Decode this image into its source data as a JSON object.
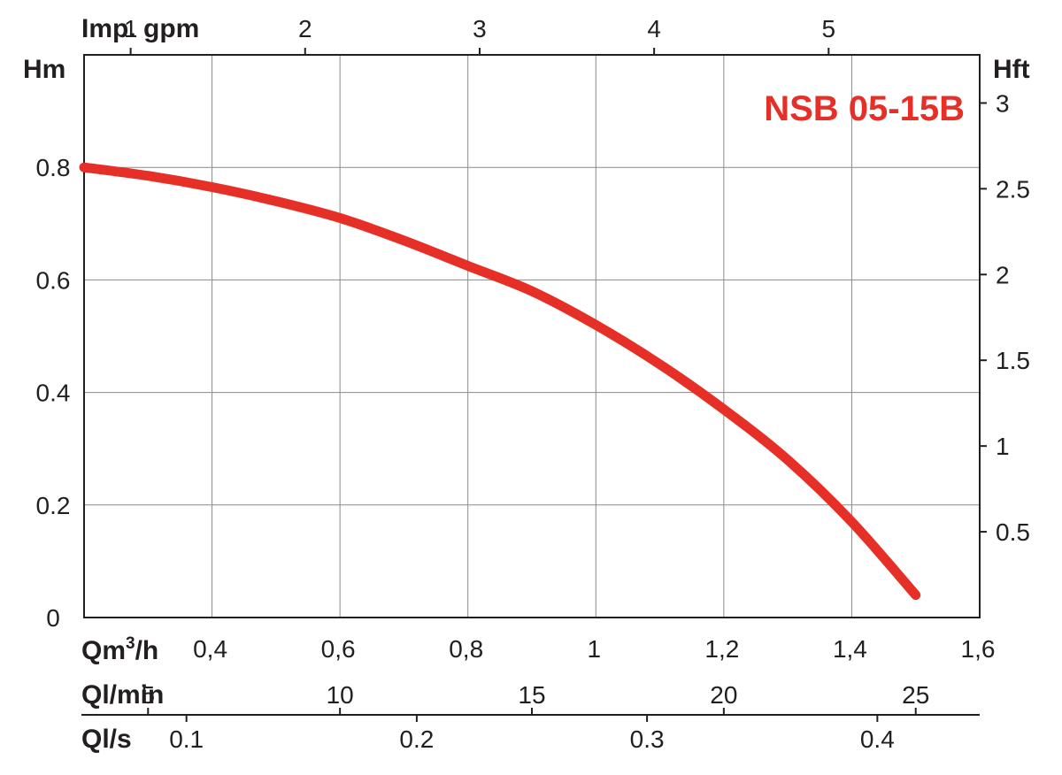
{
  "chart_data": {
    "type": "line",
    "title": "NSB 05-15B",
    "series_color": "#e63027",
    "axes": {
      "left": {
        "label": "Hm",
        "ticks": [
          "0",
          "0.2",
          "0.4",
          "0.6",
          "0.8"
        ],
        "range": [
          0,
          1.0
        ]
      },
      "right": {
        "label": "Hft",
        "ticks": [
          "0.5",
          "1",
          "1.5",
          "2",
          "2.5",
          "3"
        ]
      },
      "top": {
        "label": "Imp. gpm",
        "ticks": [
          "1",
          "2",
          "3",
          "4",
          "5"
        ]
      },
      "bottom": {
        "label_main": "Qm",
        "label_sup": "3",
        "label_tail": "/h",
        "ticks": [
          "0,4",
          "0,6",
          "0,8",
          "1",
          "1,2",
          "1,4",
          "1,6"
        ],
        "range": [
          0.2,
          1.6
        ]
      },
      "lmin": {
        "label": "Ql/min",
        "ticks": [
          "5",
          "10",
          "15",
          "20",
          "25"
        ]
      },
      "ls": {
        "label": "Ql/s",
        "ticks": [
          "0.1",
          "0.2",
          "0.3",
          "0.4"
        ]
      }
    },
    "grid": true,
    "series": [
      {
        "x": [
          0.2,
          0.3,
          0.4,
          0.5,
          0.6,
          0.7,
          0.8,
          0.9,
          1.0,
          1.1,
          1.2,
          1.3,
          1.4,
          1.5
        ],
        "y": [
          0.8,
          0.785,
          0.765,
          0.74,
          0.71,
          0.67,
          0.625,
          0.58,
          0.52,
          0.45,
          0.37,
          0.28,
          0.17,
          0.04
        ]
      }
    ]
  }
}
